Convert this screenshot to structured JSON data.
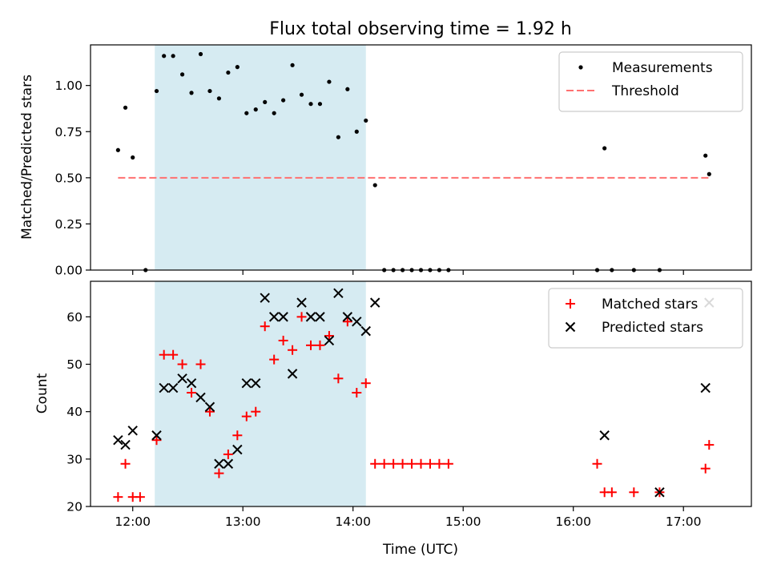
{
  "chart_data": [
    {
      "type": "scatter",
      "title": "Flux total observing time = 1.92 h",
      "ylabel": "Matched/Predicted stars",
      "xlabel": "",
      "xlim": [
        "11:37",
        "17:37"
      ],
      "ylim": [
        0,
        1.22
      ],
      "yticks": [
        "0.00",
        "0.25",
        "0.50",
        "0.75",
        "1.00"
      ],
      "yticks_values": [
        0,
        0.25,
        0.5,
        0.75,
        1.0
      ],
      "legend_position": "top-right",
      "shaded_interval": [
        "12:12",
        "14:07"
      ],
      "shaded_color": "#add8e6",
      "series": [
        {
          "name": "Measurements",
          "marker": "dot",
          "color": "#000000",
          "points": [
            [
              "11:52",
              0.65
            ],
            [
              "11:56",
              0.88
            ],
            [
              "12:00",
              0.61
            ],
            [
              "12:07",
              0.0
            ],
            [
              "12:13",
              0.97
            ],
            [
              "12:17",
              1.16
            ],
            [
              "12:22",
              1.16
            ],
            [
              "12:27",
              1.06
            ],
            [
              "12:32",
              0.96
            ],
            [
              "12:37",
              1.17
            ],
            [
              "12:42",
              0.97
            ],
            [
              "12:47",
              0.93
            ],
            [
              "12:52",
              1.07
            ],
            [
              "12:57",
              1.1
            ],
            [
              "13:02",
              0.85
            ],
            [
              "13:07",
              0.87
            ],
            [
              "13:12",
              0.91
            ],
            [
              "13:17",
              0.85
            ],
            [
              "13:22",
              0.92
            ],
            [
              "13:27",
              1.11
            ],
            [
              "13:32",
              0.95
            ],
            [
              "13:37",
              0.9
            ],
            [
              "13:42",
              0.9
            ],
            [
              "13:47",
              1.02
            ],
            [
              "13:52",
              0.72
            ],
            [
              "13:57",
              0.98
            ],
            [
              "14:02",
              0.75
            ],
            [
              "14:07",
              0.81
            ],
            [
              "14:12",
              0.46
            ],
            [
              "14:17",
              0.0
            ],
            [
              "14:22",
              0.0
            ],
            [
              "14:27",
              0.0
            ],
            [
              "14:32",
              0.0
            ],
            [
              "14:37",
              0.0
            ],
            [
              "14:42",
              0.0
            ],
            [
              "14:47",
              0.0
            ],
            [
              "14:52",
              0.0
            ],
            [
              "16:13",
              0.0
            ],
            [
              "16:17",
              0.66
            ],
            [
              "16:21",
              0.0
            ],
            [
              "16:33",
              0.0
            ],
            [
              "16:47",
              0.0
            ],
            [
              "17:12",
              0.62
            ],
            [
              "17:14",
              0.52
            ]
          ]
        },
        {
          "name": "Threshold",
          "type": "line",
          "style": "dashed",
          "color": "#ff7070",
          "points": [
            [
              "11:52",
              0.5
            ],
            [
              "17:14",
              0.5
            ]
          ]
        }
      ]
    },
    {
      "type": "scatter",
      "title": "",
      "ylabel": "Count",
      "xlabel": "Time (UTC)",
      "xlim": [
        "11:37",
        "17:37"
      ],
      "ylim": [
        20,
        67.5
      ],
      "yticks": [
        "20",
        "30",
        "40",
        "50",
        "60"
      ],
      "yticks_values": [
        20,
        30,
        40,
        50,
        60
      ],
      "xticks": [
        "12:00",
        "13:00",
        "14:00",
        "15:00",
        "16:00",
        "17:00"
      ],
      "xticks_values": [
        "12:00",
        "13:00",
        "14:00",
        "15:00",
        "16:00",
        "17:00"
      ],
      "legend_position": "top-right",
      "shaded_interval": [
        "12:12",
        "14:07"
      ],
      "shaded_color": "#add8e6",
      "series": [
        {
          "name": "Matched stars",
          "marker": "plus",
          "color": "#ff0000",
          "points": [
            [
              "11:52",
              22
            ],
            [
              "11:56",
              29
            ],
            [
              "12:00",
              22
            ],
            [
              "12:04",
              22
            ],
            [
              "12:13",
              34
            ],
            [
              "12:17",
              52
            ],
            [
              "12:22",
              52
            ],
            [
              "12:27",
              50
            ],
            [
              "12:32",
              44
            ],
            [
              "12:37",
              50
            ],
            [
              "12:42",
              40
            ],
            [
              "12:47",
              27
            ],
            [
              "12:52",
              31
            ],
            [
              "12:57",
              35
            ],
            [
              "13:02",
              39
            ],
            [
              "13:07",
              40
            ],
            [
              "13:12",
              58
            ],
            [
              "13:17",
              51
            ],
            [
              "13:22",
              55
            ],
            [
              "13:27",
              53
            ],
            [
              "13:32",
              60
            ],
            [
              "13:37",
              54
            ],
            [
              "13:42",
              54
            ],
            [
              "13:47",
              56
            ],
            [
              "13:52",
              47
            ],
            [
              "13:57",
              59
            ],
            [
              "14:02",
              44
            ],
            [
              "14:07",
              46
            ],
            [
              "14:12",
              29
            ],
            [
              "14:17",
              29
            ],
            [
              "14:22",
              29
            ],
            [
              "14:27",
              29
            ],
            [
              "14:32",
              29
            ],
            [
              "14:37",
              29
            ],
            [
              "14:42",
              29
            ],
            [
              "14:47",
              29
            ],
            [
              "14:52",
              29
            ],
            [
              "16:13",
              29
            ],
            [
              "16:17",
              23
            ],
            [
              "16:21",
              23
            ],
            [
              "16:33",
              23
            ],
            [
              "16:47",
              23
            ],
            [
              "17:12",
              28
            ],
            [
              "17:14",
              33
            ]
          ]
        },
        {
          "name": "Predicted stars",
          "marker": "x",
          "color": "#000000",
          "points": [
            [
              "11:52",
              34
            ],
            [
              "11:56",
              33
            ],
            [
              "12:00",
              36
            ],
            [
              "12:13",
              35
            ],
            [
              "12:17",
              45
            ],
            [
              "12:22",
              45
            ],
            [
              "12:27",
              47
            ],
            [
              "12:32",
              46
            ],
            [
              "12:37",
              43
            ],
            [
              "12:42",
              41
            ],
            [
              "12:47",
              29
            ],
            [
              "12:52",
              29
            ],
            [
              "12:57",
              32
            ],
            [
              "13:02",
              46
            ],
            [
              "13:07",
              46
            ],
            [
              "13:12",
              64
            ],
            [
              "13:17",
              60
            ],
            [
              "13:22",
              60
            ],
            [
              "13:27",
              48
            ],
            [
              "13:32",
              63
            ],
            [
              "13:37",
              60
            ],
            [
              "13:42",
              60
            ],
            [
              "13:47",
              55
            ],
            [
              "13:52",
              65
            ],
            [
              "13:57",
              60
            ],
            [
              "14:02",
              59
            ],
            [
              "14:07",
              57
            ],
            [
              "14:12",
              63
            ],
            [
              "16:17",
              35
            ],
            [
              "16:47",
              23
            ],
            [
              "17:12",
              45
            ],
            [
              "17:14",
              63
            ]
          ]
        }
      ]
    }
  ]
}
